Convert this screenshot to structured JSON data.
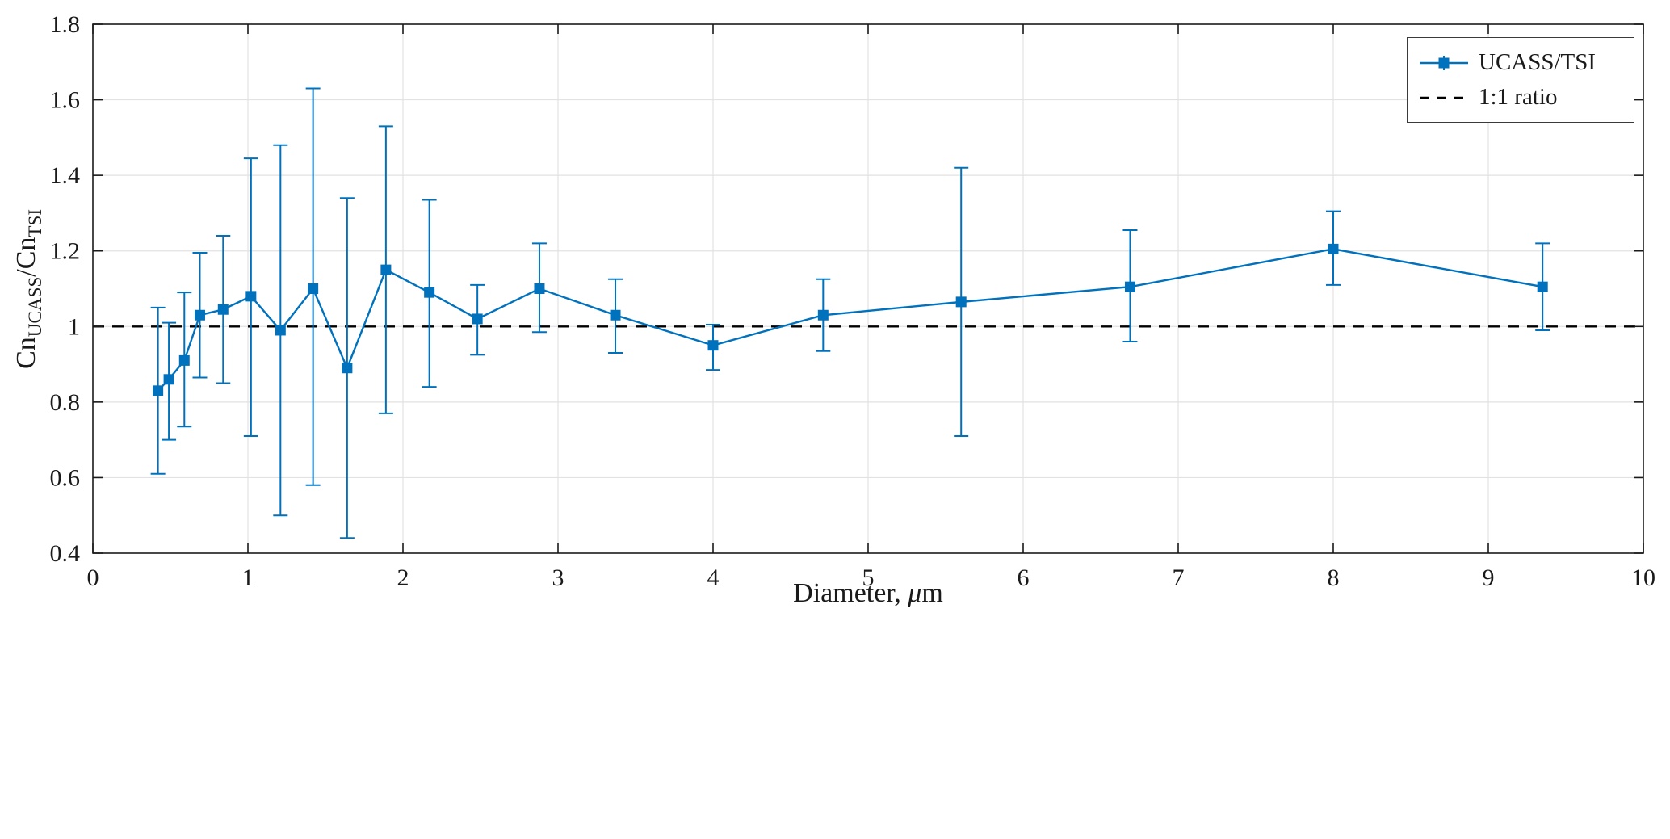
{
  "figure": {
    "background": "#ffffff"
  },
  "chart_data": {
    "type": "line",
    "title": "",
    "xlabel": "Diameter, μm",
    "ylabel": "CnUCASS/CnTSI",
    "xlabel_parts": {
      "prefix": "Diameter, ",
      "mu": "μ",
      "suffix": "m"
    },
    "ylabel_parts": {
      "base1": "Cn",
      "sub1": "UCASS",
      "base2": "/Cn",
      "sub2": "TSI"
    },
    "xlim": [
      0,
      10
    ],
    "ylim": [
      0.4,
      1.8
    ],
    "xtick_values": [
      0,
      1,
      2,
      3,
      4,
      5,
      6,
      7,
      8,
      9,
      10
    ],
    "xtick_labels": [
      "0",
      "1",
      "2",
      "3",
      "4",
      "5",
      "6",
      "7",
      "8",
      "9",
      "10"
    ],
    "ytick_values": [
      0.4,
      0.6,
      0.8,
      1.0,
      1.2,
      1.4,
      1.6,
      1.8
    ],
    "ytick_labels": [
      "0.4",
      "0.6",
      "0.8",
      "1",
      "1.2",
      "1.4",
      "1.6",
      "1.8"
    ],
    "grid": true,
    "legend_position": "top-right",
    "colors": {
      "series": "#0072BD",
      "ratio_line": "#000000",
      "grid": "#e2e2e2",
      "axis": "#1a1a1a"
    },
    "series": [
      {
        "name": "UCASS/TSI",
        "marker": "square",
        "x": [
          0.42,
          0.49,
          0.59,
          0.69,
          0.84,
          1.02,
          1.21,
          1.42,
          1.64,
          1.89,
          2.17,
          2.48,
          2.88,
          3.37,
          4.0,
          4.71,
          5.6,
          6.69,
          8.0,
          9.35
        ],
        "y": [
          0.83,
          0.86,
          0.91,
          1.03,
          1.045,
          1.08,
          0.99,
          1.1,
          0.89,
          1.15,
          1.09,
          1.02,
          1.1,
          1.03,
          0.95,
          1.03,
          1.065,
          1.105,
          1.205,
          1.105
        ],
        "err_low": [
          0.61,
          0.7,
          0.735,
          0.865,
          0.85,
          0.71,
          0.5,
          0.58,
          0.44,
          0.77,
          0.84,
          0.925,
          0.985,
          0.93,
          0.885,
          0.935,
          0.71,
          0.96,
          1.11,
          0.99
        ],
        "err_high": [
          1.05,
          1.01,
          1.09,
          1.195,
          1.24,
          1.445,
          1.48,
          1.63,
          1.34,
          1.53,
          1.335,
          1.11,
          1.22,
          1.125,
          1.005,
          1.125,
          1.42,
          1.255,
          1.305,
          1.22
        ]
      },
      {
        "name": "1:1 ratio",
        "type": "hline",
        "y": 1.0,
        "style": "dashed"
      }
    ]
  }
}
